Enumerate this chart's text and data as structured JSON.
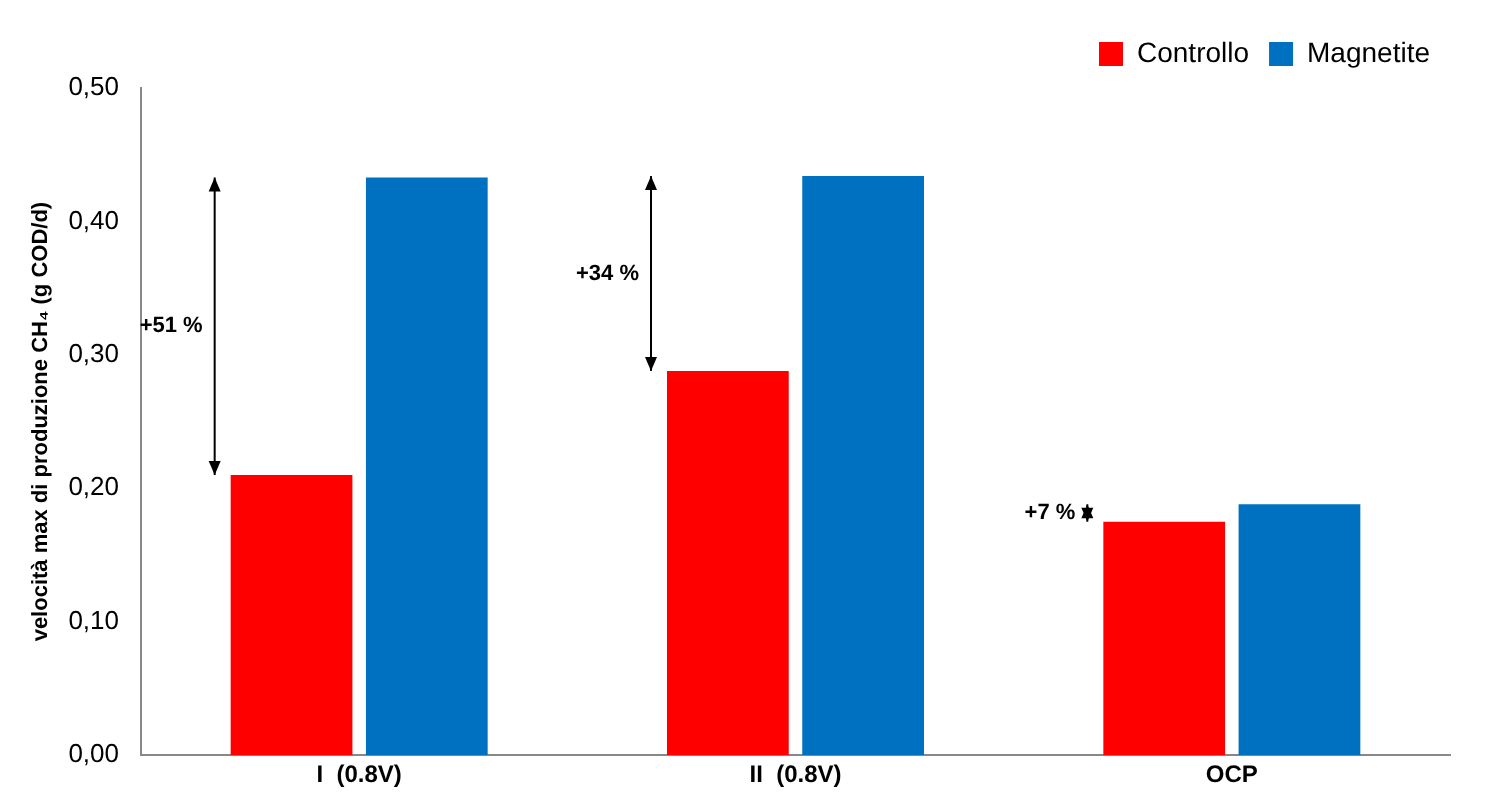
{
  "chart_data": {
    "type": "bar",
    "ylabel": "velocità max di produzione CH₄ (g COD/d)",
    "categories": [
      "I  (0.8V)",
      "II  (0.8V)",
      "OCP"
    ],
    "series": [
      {
        "name": "Controllo",
        "color": "#ff0000",
        "values": [
          0.21,
          0.288,
          0.175
        ]
      },
      {
        "name": "Magnetite",
        "color": "#0070c0",
        "values": [
          0.433,
          0.434,
          0.188
        ]
      }
    ],
    "ylim": [
      0,
      0.5
    ],
    "yticks": [
      {
        "value": 0,
        "label": "0,00"
      },
      {
        "value": 0.1,
        "label": "0,10"
      },
      {
        "value": 0.2,
        "label": "0,20"
      },
      {
        "value": 0.3,
        "label": "0,30"
      },
      {
        "value": 0.4,
        "label": "0,40"
      },
      {
        "value": 0.5,
        "label": "0,50"
      }
    ],
    "grid": false,
    "legend": "top right",
    "annotations": [
      "+51 %",
      "+34 %",
      "+7 %"
    ]
  }
}
